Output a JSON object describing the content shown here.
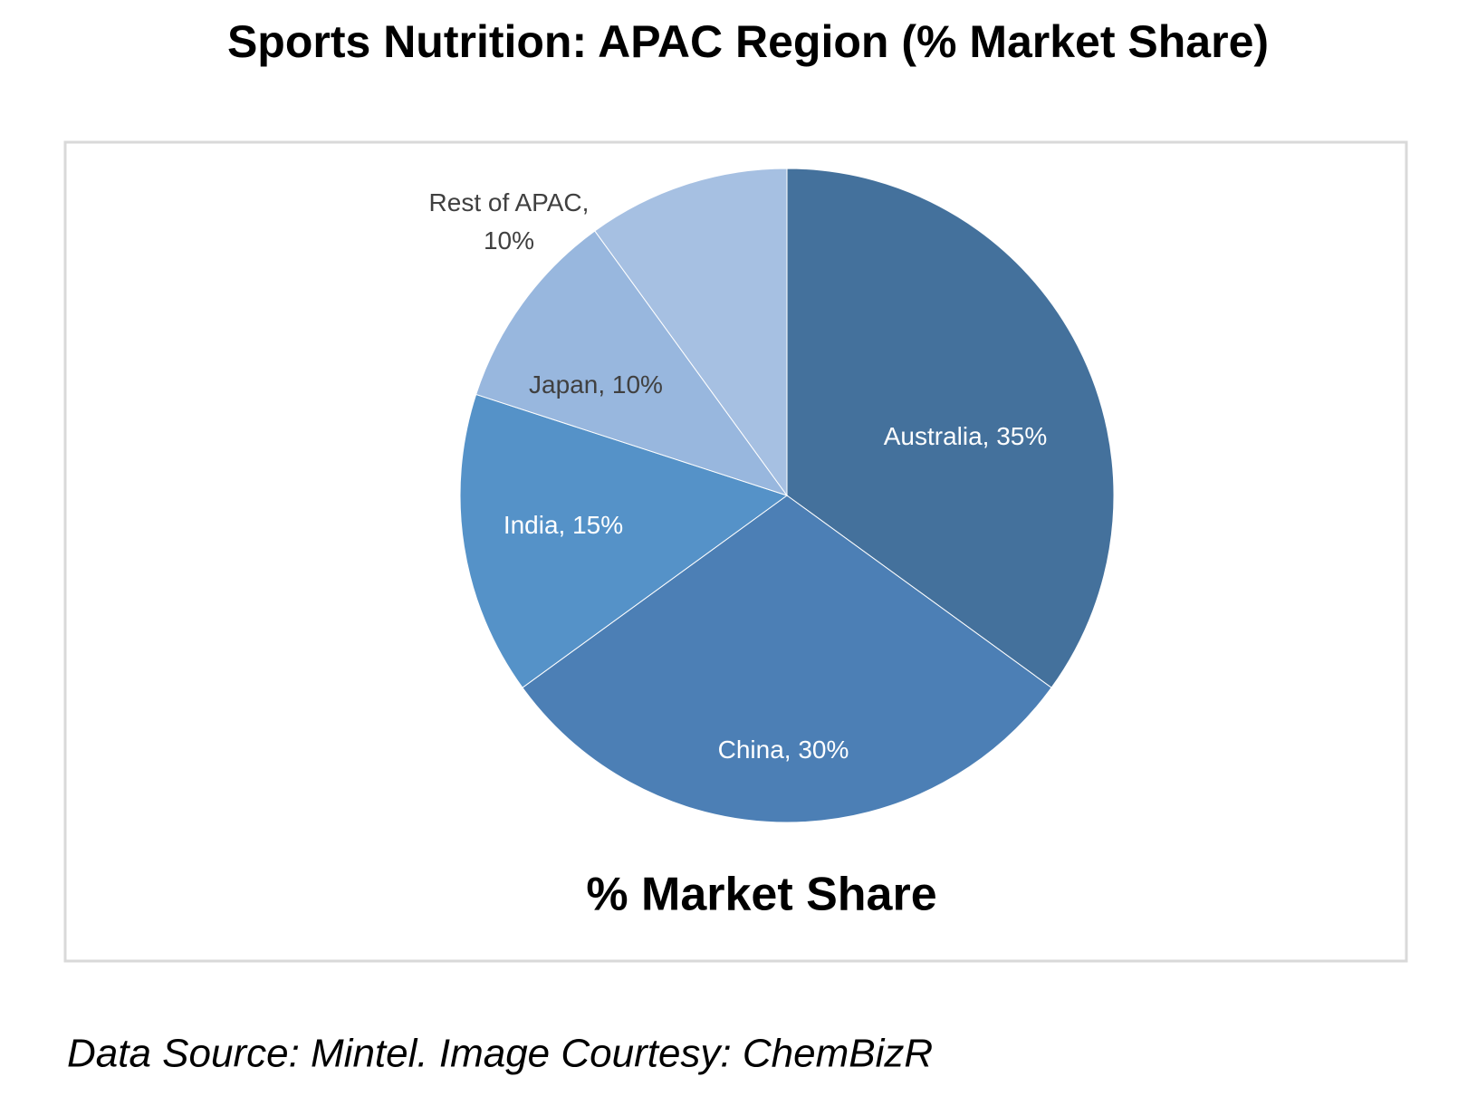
{
  "chart_data": {
    "type": "pie",
    "title": "Sports Nutrition: APAC Region (% Market Share)",
    "subtitle": "% Market Share",
    "source": "Data Source: Mintel. Image Courtesy: ChemBizR",
    "values": [
      35,
      30,
      15,
      10,
      10
    ],
    "value_labels": [
      "Australia, 35%",
      "China, 30%",
      "India, 15%",
      "Japan, 10%",
      "Rest of APAC, 10%"
    ],
    "colors": [
      "#44719c",
      "#4c7fb5",
      "#5592c8",
      "#98b7de",
      "#a6c0e2"
    ],
    "label_colors": [
      "#ffffff",
      "#ffffff",
      "#ffffff",
      "#404040",
      "#404040"
    ]
  }
}
